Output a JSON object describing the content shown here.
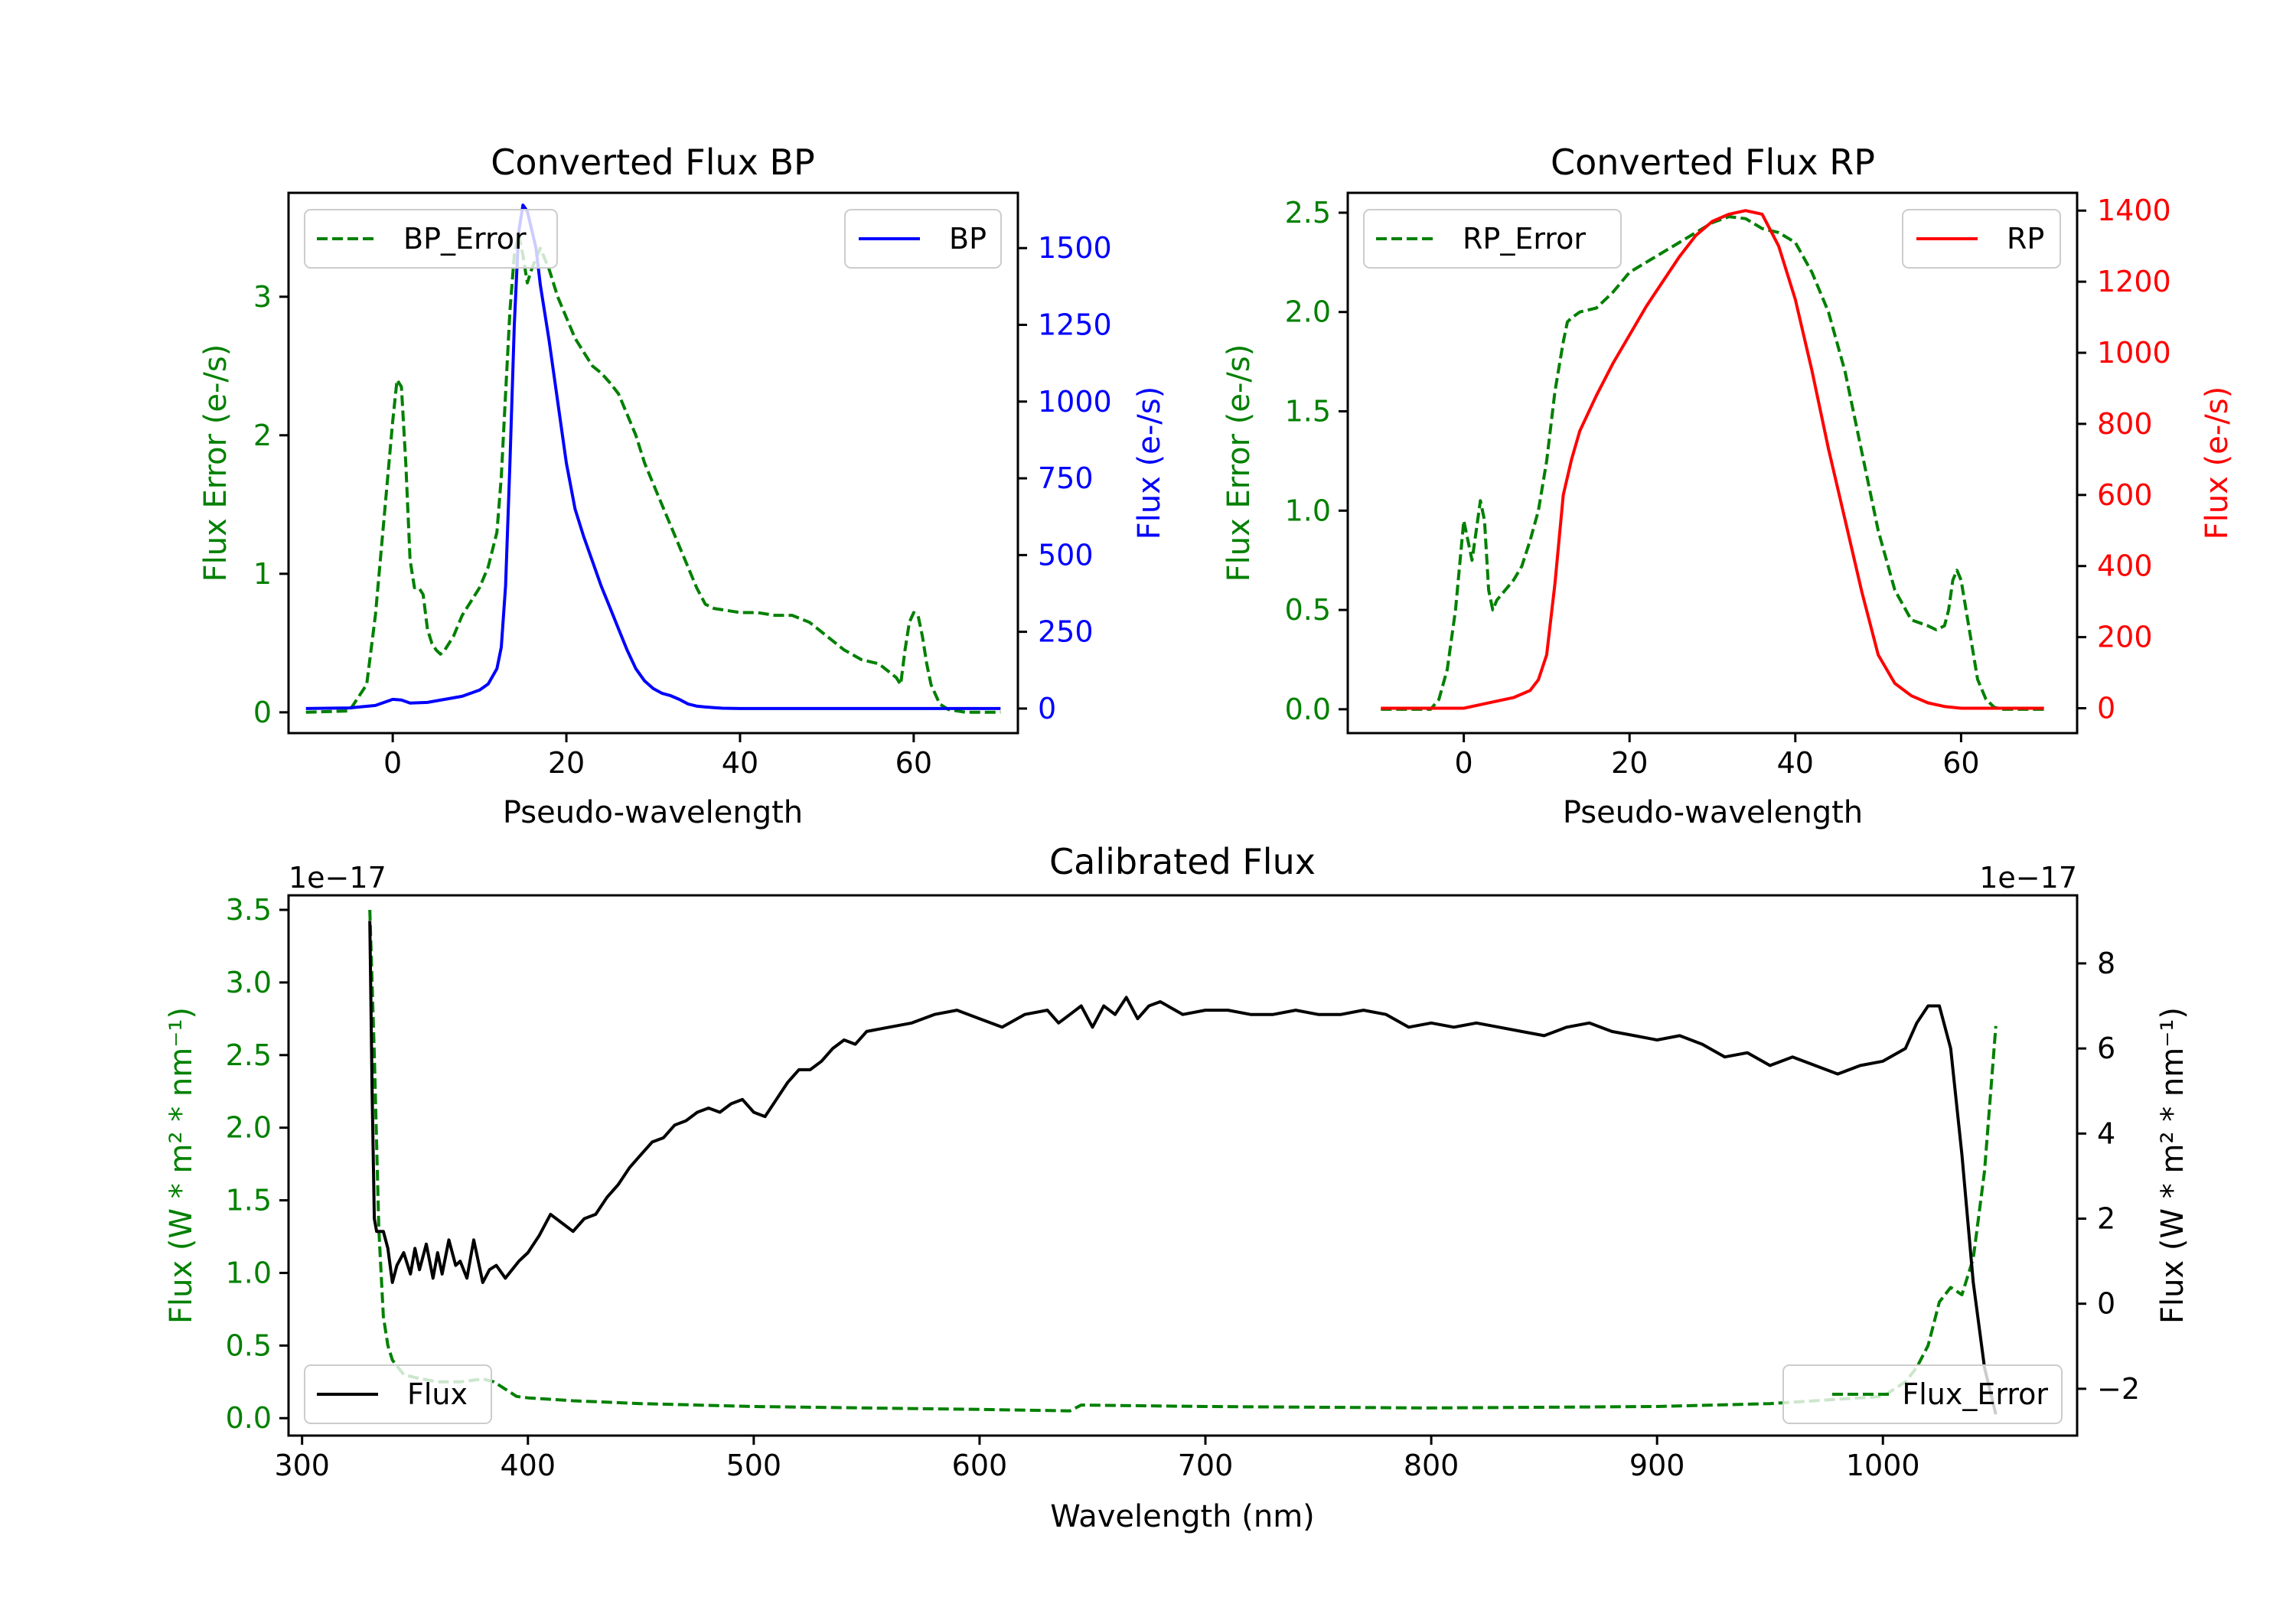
{
  "chart_data": [
    {
      "id": "bp",
      "type": "line",
      "title": "Converted Flux BP",
      "xlabel": "Pseudo-wavelength",
      "ylabel_left": "Flux Error (e-/s)",
      "ylabel_right": "Flux (e-/s)",
      "xlim": [
        -12,
        72
      ],
      "ylim_left": [
        -0.15,
        3.75
      ],
      "ylim_right": [
        -80,
        1680
      ],
      "xticks": [
        0,
        20,
        40,
        60
      ],
      "xtick_labels": [
        "0",
        "20",
        "40",
        "60"
      ],
      "yticks_left": [
        0,
        1,
        2,
        3
      ],
      "ytick_labels_left": [
        "0",
        "1",
        "2",
        "3"
      ],
      "yticks_right": [
        0,
        250,
        500,
        750,
        1000,
        1250,
        1500
      ],
      "ytick_labels_right": [
        "0",
        "250",
        "500",
        "750",
        "1000",
        "1250",
        "1500"
      ],
      "legend_left": {
        "label": "BP_Error",
        "position": "top-left"
      },
      "legend_right": {
        "label": "BP",
        "position": "top-right"
      },
      "series": [
        {
          "name": "BP_Error",
          "axis": "left",
          "style": "dashed",
          "color": "#008000",
          "x": [
            -10,
            -5,
            -3,
            -2,
            -1,
            0,
            0.5,
            1,
            1.5,
            2,
            2.5,
            3,
            3.5,
            4,
            4.5,
            5,
            5.5,
            6,
            7,
            8,
            9,
            10,
            11,
            12,
            12.5,
            13,
            13.5,
            14,
            14.5,
            15,
            15.5,
            16,
            17,
            18,
            19,
            20,
            21,
            22,
            23,
            24,
            25,
            26,
            27,
            28,
            29,
            30,
            31,
            32,
            33,
            34,
            35,
            36,
            37,
            38,
            39,
            40,
            42,
            44,
            46,
            48,
            50,
            52,
            54,
            56,
            57,
            58,
            58.5,
            59,
            59.5,
            60,
            60.5,
            61,
            61.5,
            62,
            63,
            64,
            65,
            66,
            68,
            70
          ],
          "y": [
            0.0,
            0.01,
            0.2,
            0.7,
            1.4,
            2.1,
            2.4,
            2.35,
            1.8,
            1.1,
            0.9,
            0.9,
            0.85,
            0.6,
            0.5,
            0.45,
            0.42,
            0.45,
            0.55,
            0.7,
            0.8,
            0.9,
            1.05,
            1.3,
            1.7,
            2.3,
            2.9,
            3.3,
            3.45,
            3.3,
            3.1,
            3.2,
            3.35,
            3.2,
            3.0,
            2.85,
            2.7,
            2.6,
            2.5,
            2.45,
            2.38,
            2.3,
            2.15,
            2.0,
            1.8,
            1.65,
            1.5,
            1.35,
            1.2,
            1.05,
            0.9,
            0.78,
            0.75,
            0.74,
            0.73,
            0.72,
            0.72,
            0.7,
            0.7,
            0.65,
            0.55,
            0.45,
            0.38,
            0.35,
            0.3,
            0.25,
            0.2,
            0.45,
            0.65,
            0.72,
            0.7,
            0.55,
            0.35,
            0.2,
            0.06,
            0.02,
            0.01,
            0.0,
            0.0,
            0.0
          ]
        },
        {
          "name": "BP",
          "axis": "right",
          "style": "solid",
          "color": "#0000ff",
          "x": [
            -10,
            -5,
            -2,
            0,
            1,
            2,
            4,
            6,
            8,
            10,
            11,
            12,
            12.5,
            13,
            13.5,
            14,
            14.5,
            15,
            15.5,
            16,
            16.5,
            17,
            18,
            19,
            20,
            21,
            22,
            23,
            24,
            25,
            26,
            27,
            28,
            29,
            30,
            31,
            32,
            33,
            34,
            35,
            36,
            37,
            38,
            40,
            45,
            50,
            55,
            60,
            65,
            70
          ],
          "y": [
            0,
            2,
            10,
            30,
            28,
            18,
            20,
            30,
            40,
            60,
            80,
            130,
            200,
            400,
            800,
            1250,
            1550,
            1640,
            1620,
            1560,
            1500,
            1380,
            1200,
            1000,
            800,
            650,
            560,
            480,
            400,
            330,
            260,
            190,
            130,
            90,
            65,
            50,
            42,
            30,
            15,
            8,
            5,
            3,
            1,
            0,
            0,
            0,
            0,
            0,
            0,
            0
          ]
        }
      ]
    },
    {
      "id": "rp",
      "type": "line",
      "title": "Converted Flux RP",
      "xlabel": "Pseudo-wavelength",
      "ylabel_left": "Flux Error (e-/s)",
      "ylabel_right": "Flux (e-/s)",
      "xlim": [
        -14,
        74
      ],
      "ylim_left": [
        -0.12,
        2.6
      ],
      "ylim_right": [
        -70,
        1450
      ],
      "xticks": [
        0,
        20,
        40,
        60
      ],
      "xtick_labels": [
        "0",
        "20",
        "40",
        "60"
      ],
      "yticks_left": [
        0.0,
        0.5,
        1.0,
        1.5,
        2.0,
        2.5
      ],
      "ytick_labels_left": [
        "0.0",
        "0.5",
        "1.0",
        "1.5",
        "2.0",
        "2.5"
      ],
      "yticks_right": [
        0,
        200,
        400,
        600,
        800,
        1000,
        1200,
        1400
      ],
      "ytick_labels_right": [
        "0",
        "200",
        "400",
        "600",
        "800",
        "1000",
        "1200",
        "1400"
      ],
      "legend_left": {
        "label": "RP_Error",
        "position": "top-left"
      },
      "legend_right": {
        "label": "RP",
        "position": "top-right"
      },
      "series": [
        {
          "name": "RP_Error",
          "axis": "left",
          "style": "dashed",
          "color": "#008000",
          "x": [
            -10,
            -5,
            -4,
            -3,
            -2,
            -1,
            0,
            0.5,
            1,
            1.5,
            2,
            2.5,
            3,
            3.5,
            4,
            5,
            6,
            7,
            8,
            9,
            10,
            11,
            12,
            12.5,
            13,
            14,
            16,
            18,
            20,
            22,
            24,
            26,
            28,
            30,
            32,
            34,
            36,
            38,
            40,
            42,
            44,
            46,
            48,
            50,
            52,
            54,
            56,
            57,
            58,
            58.5,
            59,
            59.5,
            60,
            61,
            62,
            63,
            64,
            65,
            70
          ],
          "y": [
            0,
            0,
            0,
            0.05,
            0.2,
            0.5,
            0.95,
            0.85,
            0.75,
            0.9,
            1.05,
            0.95,
            0.6,
            0.5,
            0.55,
            0.6,
            0.65,
            0.72,
            0.85,
            1.0,
            1.25,
            1.6,
            1.85,
            1.95,
            1.97,
            2.0,
            2.02,
            2.1,
            2.2,
            2.25,
            2.3,
            2.35,
            2.4,
            2.45,
            2.48,
            2.47,
            2.42,
            2.4,
            2.35,
            2.2,
            2.0,
            1.7,
            1.3,
            0.9,
            0.6,
            0.45,
            0.42,
            0.4,
            0.42,
            0.5,
            0.65,
            0.7,
            0.65,
            0.4,
            0.15,
            0.05,
            0.01,
            0.0,
            0.0
          ]
        },
        {
          "name": "RP",
          "axis": "right",
          "style": "solid",
          "color": "#ff0000",
          "x": [
            -10,
            -5,
            0,
            2,
            4,
            6,
            8,
            9,
            10,
            11,
            12,
            13,
            14,
            16,
            18,
            20,
            22,
            24,
            26,
            28,
            30,
            32,
            34,
            36,
            38,
            40,
            42,
            44,
            46,
            48,
            50,
            52,
            54,
            56,
            58,
            60,
            65,
            70
          ],
          "y": [
            0,
            0,
            0,
            10,
            20,
            30,
            50,
            80,
            150,
            350,
            600,
            700,
            780,
            880,
            970,
            1050,
            1130,
            1200,
            1270,
            1330,
            1370,
            1390,
            1400,
            1390,
            1300,
            1150,
            950,
            730,
            530,
            330,
            150,
            70,
            35,
            15,
            5,
            0,
            0,
            0
          ]
        }
      ]
    },
    {
      "id": "calibrated",
      "type": "line",
      "title": "Calibrated Flux",
      "xlabel": "Wavelength (nm)",
      "ylabel_left": "Flux (W * m² * nm⁻¹)",
      "ylabel_right": "Flux (W * m² * nm⁻¹)",
      "offset_left": "1e−17",
      "offset_right": "1e−17",
      "xlim": [
        294,
        1086
      ],
      "ylim_left": [
        -0.12,
        3.6
      ],
      "ylim_right": [
        -3.1,
        9.6
      ],
      "xticks": [
        300,
        400,
        500,
        600,
        700,
        800,
        900,
        1000
      ],
      "xtick_labels": [
        "300",
        "400",
        "500",
        "600",
        "700",
        "800",
        "900",
        "1000"
      ],
      "yticks_left": [
        0.0,
        0.5,
        1.0,
        1.5,
        2.0,
        2.5,
        3.0,
        3.5
      ],
      "ytick_labels_left": [
        "0.0",
        "0.5",
        "1.0",
        "1.5",
        "2.0",
        "2.5",
        "3.0",
        "3.5"
      ],
      "yticks_right": [
        -2,
        0,
        2,
        4,
        6,
        8
      ],
      "ytick_labels_right": [
        "−2",
        "0",
        "2",
        "4",
        "6",
        "8"
      ],
      "legend_left": {
        "label": "Flux",
        "position": "lower-left"
      },
      "legend_right": {
        "label": "Flux_Error",
        "position": "lower-right"
      },
      "series": [
        {
          "name": "Flux_Error",
          "axis": "left",
          "style": "dashed",
          "color": "#008000",
          "x": [
            330,
            332,
            334,
            336,
            338,
            340,
            345,
            350,
            360,
            370,
            380,
            385,
            390,
            395,
            400,
            420,
            450,
            500,
            550,
            600,
            640,
            645,
            700,
            800,
            900,
            950,
            1000,
            1010,
            1015,
            1020,
            1025,
            1030,
            1035,
            1040,
            1045,
            1050
          ],
          "y": [
            3.5,
            2.5,
            1.3,
            0.7,
            0.5,
            0.4,
            0.3,
            0.28,
            0.25,
            0.25,
            0.27,
            0.25,
            0.2,
            0.15,
            0.14,
            0.12,
            0.1,
            0.08,
            0.07,
            0.06,
            0.05,
            0.09,
            0.08,
            0.07,
            0.08,
            0.1,
            0.15,
            0.25,
            0.35,
            0.5,
            0.8,
            0.9,
            0.85,
            1.1,
            1.7,
            2.7
          ]
        },
        {
          "name": "Flux",
          "axis": "right",
          "style": "solid",
          "color": "#000000",
          "x": [
            330,
            331,
            332,
            333,
            334,
            336,
            338,
            340,
            342,
            345,
            348,
            350,
            352,
            355,
            358,
            360,
            362,
            365,
            368,
            370,
            373,
            376,
            380,
            383,
            386,
            390,
            393,
            396,
            400,
            405,
            410,
            415,
            420,
            425,
            430,
            435,
            440,
            445,
            450,
            455,
            460,
            465,
            470,
            475,
            480,
            485,
            490,
            495,
            500,
            505,
            510,
            515,
            520,
            525,
            530,
            535,
            540,
            545,
            550,
            560,
            570,
            580,
            590,
            600,
            610,
            620,
            630,
            635,
            640,
            645,
            650,
            655,
            660,
            665,
            670,
            675,
            680,
            690,
            700,
            710,
            720,
            730,
            740,
            750,
            760,
            770,
            780,
            790,
            800,
            810,
            820,
            830,
            840,
            850,
            860,
            870,
            880,
            890,
            900,
            910,
            920,
            930,
            940,
            950,
            960,
            970,
            980,
            990,
            1000,
            1010,
            1015,
            1020,
            1025,
            1030,
            1035,
            1040,
            1045,
            1050
          ],
          "y": [
            9.0,
            5.0,
            2.0,
            1.7,
            1.7,
            1.7,
            1.3,
            0.5,
            0.9,
            1.2,
            0.7,
            1.3,
            0.8,
            1.4,
            0.6,
            1.2,
            0.7,
            1.5,
            0.9,
            1.0,
            0.6,
            1.5,
            0.5,
            0.8,
            0.9,
            0.6,
            0.8,
            1.0,
            1.2,
            1.6,
            2.1,
            1.9,
            1.7,
            2.0,
            2.1,
            2.5,
            2.8,
            3.2,
            3.5,
            3.8,
            3.9,
            4.2,
            4.3,
            4.5,
            4.6,
            4.5,
            4.7,
            4.8,
            4.5,
            4.4,
            4.8,
            5.2,
            5.5,
            5.5,
            5.7,
            6.0,
            6.2,
            6.1,
            6.4,
            6.5,
            6.6,
            6.8,
            6.9,
            6.7,
            6.5,
            6.8,
            6.9,
            6.6,
            6.8,
            7.0,
            6.5,
            7.0,
            6.8,
            7.2,
            6.7,
            7.0,
            7.1,
            6.8,
            6.9,
            6.9,
            6.8,
            6.8,
            6.9,
            6.8,
            6.8,
            6.9,
            6.8,
            6.5,
            6.6,
            6.5,
            6.6,
            6.5,
            6.4,
            6.3,
            6.5,
            6.6,
            6.4,
            6.3,
            6.2,
            6.3,
            6.1,
            5.8,
            5.9,
            5.6,
            5.8,
            5.6,
            5.4,
            5.6,
            5.7,
            6.0,
            6.6,
            7.0,
            7.0,
            6.0,
            3.5,
            0.5,
            -1.5,
            -2.6
          ]
        }
      ]
    }
  ]
}
